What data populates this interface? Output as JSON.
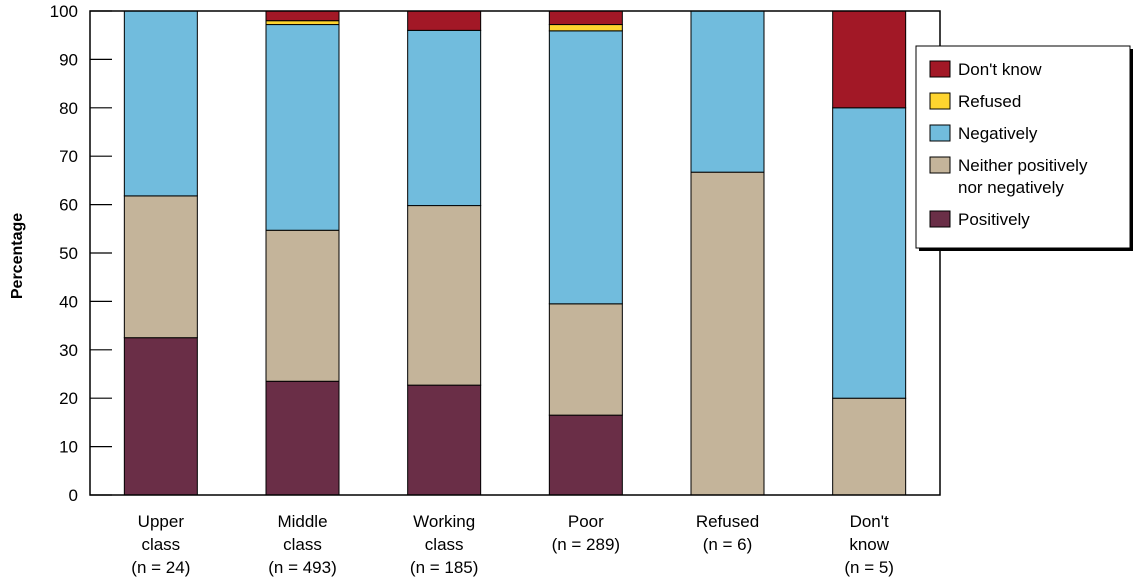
{
  "chart_data": {
    "type": "bar",
    "stacked": true,
    "title": "",
    "xlabel": "",
    "ylabel": "Percentage",
    "ylim": [
      0,
      100
    ],
    "yticks": [
      0,
      10,
      20,
      30,
      40,
      50,
      60,
      70,
      80,
      90,
      100
    ],
    "grid": false,
    "legend_position": "right",
    "categories": [
      [
        "Upper",
        "class",
        "(n = 24)"
      ],
      [
        "Middle",
        "class",
        "(n = 493)"
      ],
      [
        "Working",
        "class",
        "(n = 185)"
      ],
      [
        "Poor",
        "(n = 289)"
      ],
      [
        "Refused",
        "(n = 6)"
      ],
      [
        "Don't",
        "know",
        "(n = 5)"
      ]
    ],
    "series": [
      {
        "name": "Positively",
        "color": "#6a2e47",
        "values": [
          32.5,
          23.5,
          22.7,
          16.5,
          0,
          0
        ]
      },
      {
        "name": "Neither positively nor negatively",
        "legend_lines": [
          "Neither positively",
          "nor negatively"
        ],
        "color": "#c4b49a",
        "values": [
          29.3,
          31.2,
          37.1,
          23.0,
          66.7,
          20.0
        ]
      },
      {
        "name": "Negatively",
        "color": "#71bcdd",
        "values": [
          38.2,
          42.5,
          36.2,
          56.4,
          33.3,
          60.0
        ]
      },
      {
        "name": "Refused",
        "color": "#fed42f",
        "values": [
          0,
          0.8,
          0,
          1.3,
          0,
          0
        ]
      },
      {
        "name": "Don't know",
        "color": "#a21826",
        "values": [
          0,
          2.0,
          4.0,
          2.8,
          0,
          20.0
        ]
      }
    ],
    "legend_order": [
      "Don't know",
      "Refused",
      "Negatively",
      "Neither positively nor negatively",
      "Positively"
    ]
  }
}
